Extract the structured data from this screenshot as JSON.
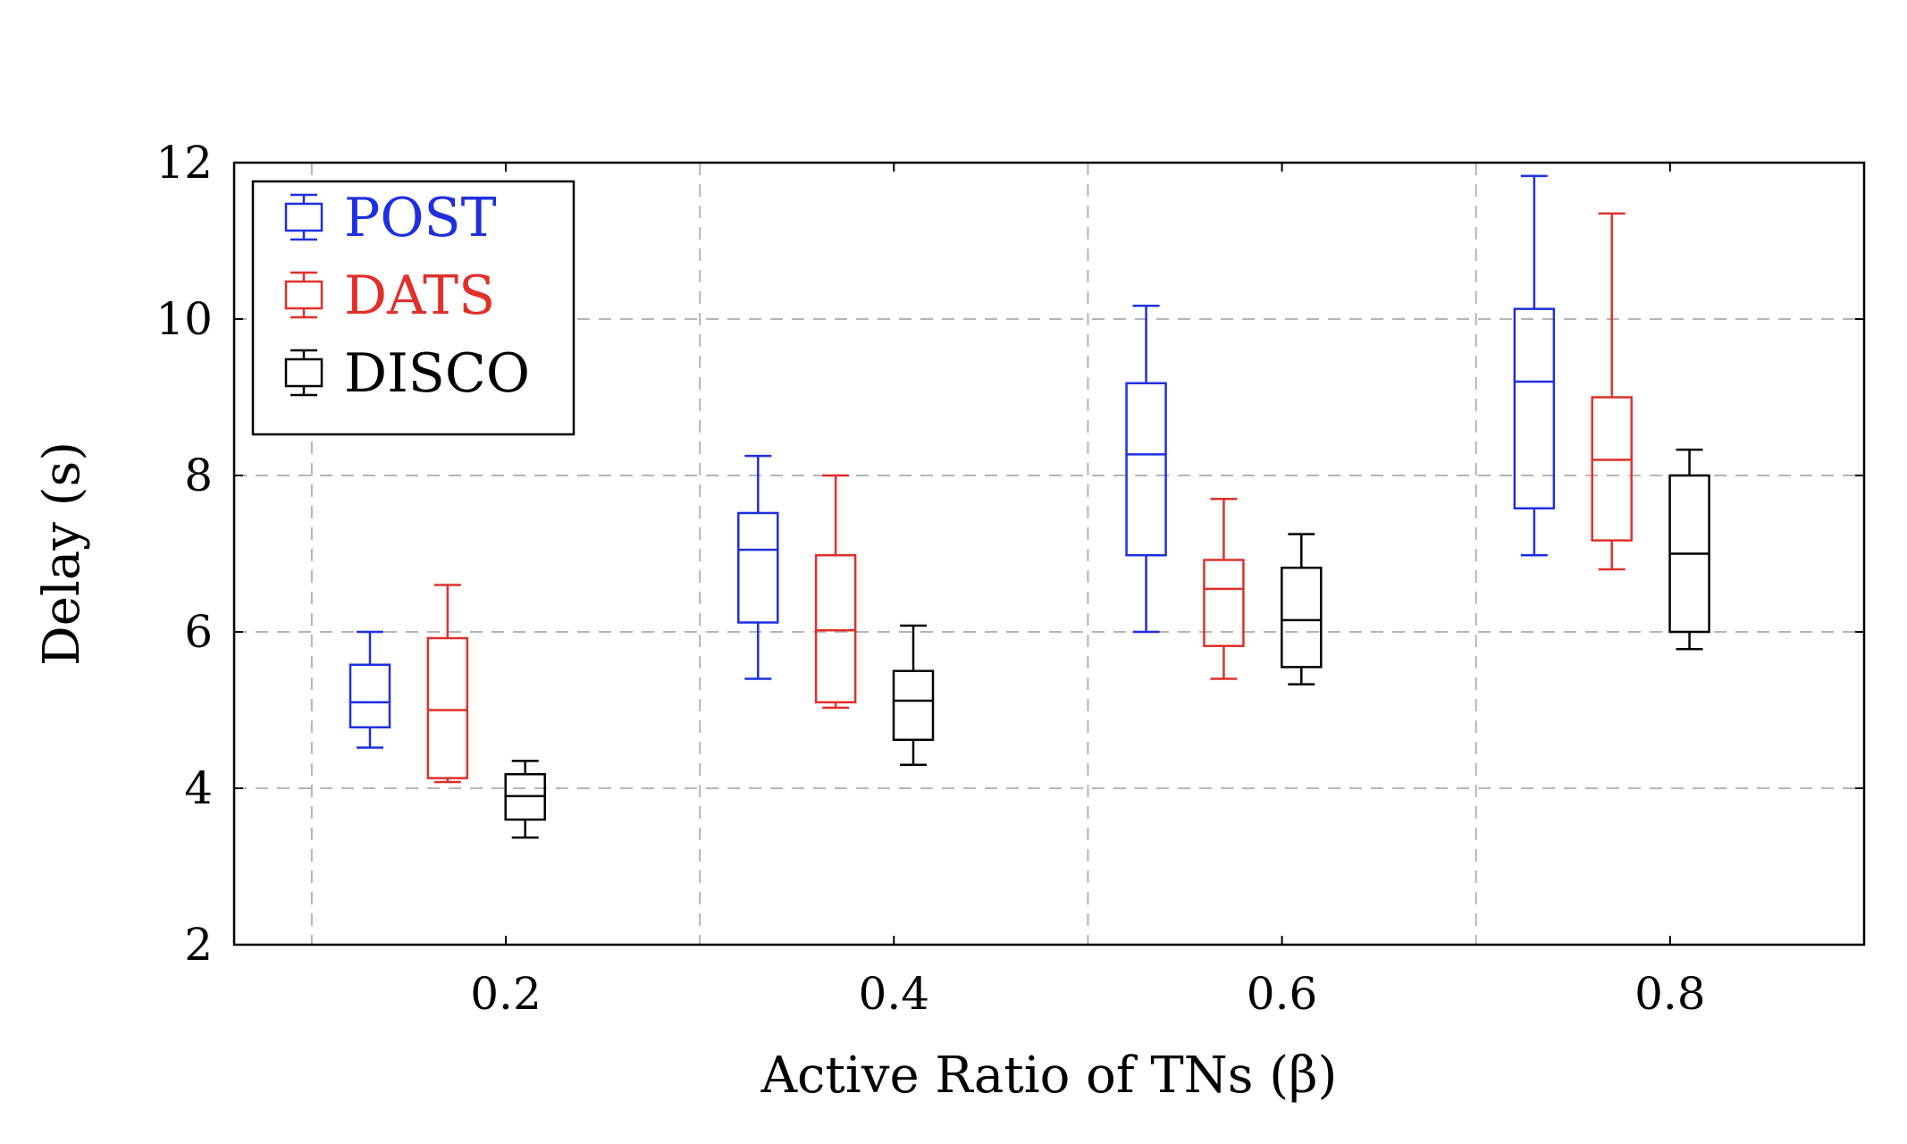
{
  "chart_data": {
    "type": "boxplot",
    "title": "",
    "xlabel": "Active Ratio of TNs (β)",
    "ylabel": "Delay (s)",
    "categories": [
      "0.2",
      "0.4",
      "0.6",
      "0.8"
    ],
    "x_ticks": [
      0.2,
      0.4,
      0.6,
      0.8
    ],
    "x_gridlines": [
      0.1,
      0.3,
      0.5,
      0.7
    ],
    "xlim": [
      0.06,
      0.9
    ],
    "ylim": [
      2,
      12
    ],
    "y_ticks": [
      2,
      4,
      6,
      8,
      10,
      12
    ],
    "y_tick_labels": [
      "2",
      "4",
      "6",
      "8",
      "10",
      "12"
    ],
    "grid": true,
    "legend_position": "top-left",
    "series": [
      {
        "name": "POST",
        "color": "#1f2fe0",
        "offset": -0.07,
        "boxes": [
          {
            "whisker_low": 4.52,
            "q1": 4.78,
            "median": 5.1,
            "q3": 5.58,
            "whisker_high": 6.0
          },
          {
            "whisker_low": 5.4,
            "q1": 6.12,
            "median": 7.05,
            "q3": 7.52,
            "whisker_high": 8.25
          },
          {
            "whisker_low": 6.0,
            "q1": 6.98,
            "median": 8.27,
            "q3": 9.18,
            "whisker_high": 10.17
          },
          {
            "whisker_low": 6.98,
            "q1": 7.58,
            "median": 9.2,
            "q3": 10.13,
            "whisker_high": 11.83
          }
        ]
      },
      {
        "name": "DATS",
        "color": "#e0302a",
        "offset": -0.03,
        "boxes": [
          {
            "whisker_low": 4.08,
            "q1": 4.13,
            "median": 5.0,
            "q3": 5.92,
            "whisker_high": 6.6
          },
          {
            "whisker_low": 5.03,
            "q1": 5.1,
            "median": 6.02,
            "q3": 6.98,
            "whisker_high": 8.0
          },
          {
            "whisker_low": 5.4,
            "q1": 5.82,
            "median": 6.55,
            "q3": 6.92,
            "whisker_high": 7.7
          },
          {
            "whisker_low": 6.8,
            "q1": 7.17,
            "median": 8.2,
            "q3": 9.0,
            "whisker_high": 11.35
          }
        ]
      },
      {
        "name": "DISCO",
        "color": "#000000",
        "offset": 0.01,
        "boxes": [
          {
            "whisker_low": 3.37,
            "q1": 3.6,
            "median": 3.9,
            "q3": 4.18,
            "whisker_high": 4.35
          },
          {
            "whisker_low": 4.3,
            "q1": 4.62,
            "median": 5.12,
            "q3": 5.5,
            "whisker_high": 6.08
          },
          {
            "whisker_low": 5.33,
            "q1": 5.55,
            "median": 6.15,
            "q3": 6.82,
            "whisker_high": 7.25
          },
          {
            "whisker_low": 5.78,
            "q1": 6.0,
            "median": 7.0,
            "q3": 8.0,
            "whisker_high": 8.33
          }
        ]
      }
    ]
  }
}
